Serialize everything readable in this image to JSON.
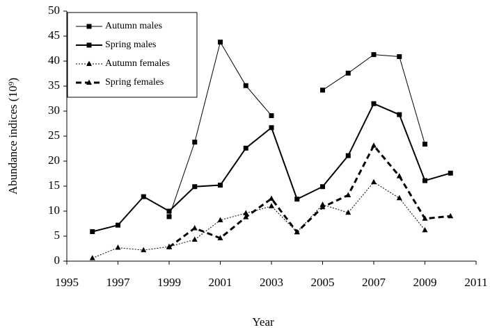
{
  "chart_data": {
    "type": "line",
    "x_label": "Year",
    "y_label": "Abundance indices (10⁹)",
    "x": [
      1996,
      1997,
      1998,
      1999,
      2000,
      2001,
      2002,
      2003,
      2004,
      2005,
      2006,
      2007,
      2008,
      2009,
      2010
    ],
    "series": [
      {
        "name": "Autumn males",
        "color": "#000000",
        "line_style": "solid",
        "line_width": 1,
        "marker": "square",
        "values": [
          null,
          null,
          null,
          8.9,
          23.8,
          43.8,
          35.1,
          29.1,
          null,
          34.2,
          37.6,
          41.3,
          40.9,
          23.4,
          null
        ]
      },
      {
        "name": "Spring males",
        "color": "#000000",
        "line_style": "solid",
        "line_width": 2,
        "marker": "square",
        "values": [
          5.9,
          7.2,
          12.9,
          10.0,
          14.9,
          15.2,
          22.6,
          26.7,
          12.4,
          14.9,
          21.1,
          31.5,
          29.3,
          16.1,
          17.6
        ]
      },
      {
        "name": "Autumn females",
        "color": "#000000",
        "line_style": "dotted",
        "line_width": 1,
        "marker": "triangle",
        "values": [
          0.6,
          2.7,
          2.2,
          2.9,
          4.3,
          8.2,
          9.6,
          11.0,
          5.8,
          11.3,
          9.7,
          15.8,
          12.6,
          6.2,
          null
        ]
      },
      {
        "name": "Spring females",
        "color": "#000000",
        "line_style": "dashed",
        "line_width": 3,
        "marker": "triangle",
        "values": [
          null,
          null,
          null,
          2.8,
          6.6,
          4.6,
          8.8,
          12.5,
          5.8,
          10.8,
          13.2,
          23.1,
          17.0,
          8.5,
          9.0
        ]
      }
    ],
    "xlim": [
      1995,
      2011
    ],
    "xticks": [
      1995,
      1997,
      1999,
      2001,
      2003,
      2005,
      2007,
      2009,
      2011
    ],
    "ylim": [
      0,
      50
    ],
    "yticks": [
      0,
      5,
      10,
      15,
      20,
      25,
      30,
      35,
      40,
      45,
      50
    ],
    "legend": "upper-left"
  }
}
